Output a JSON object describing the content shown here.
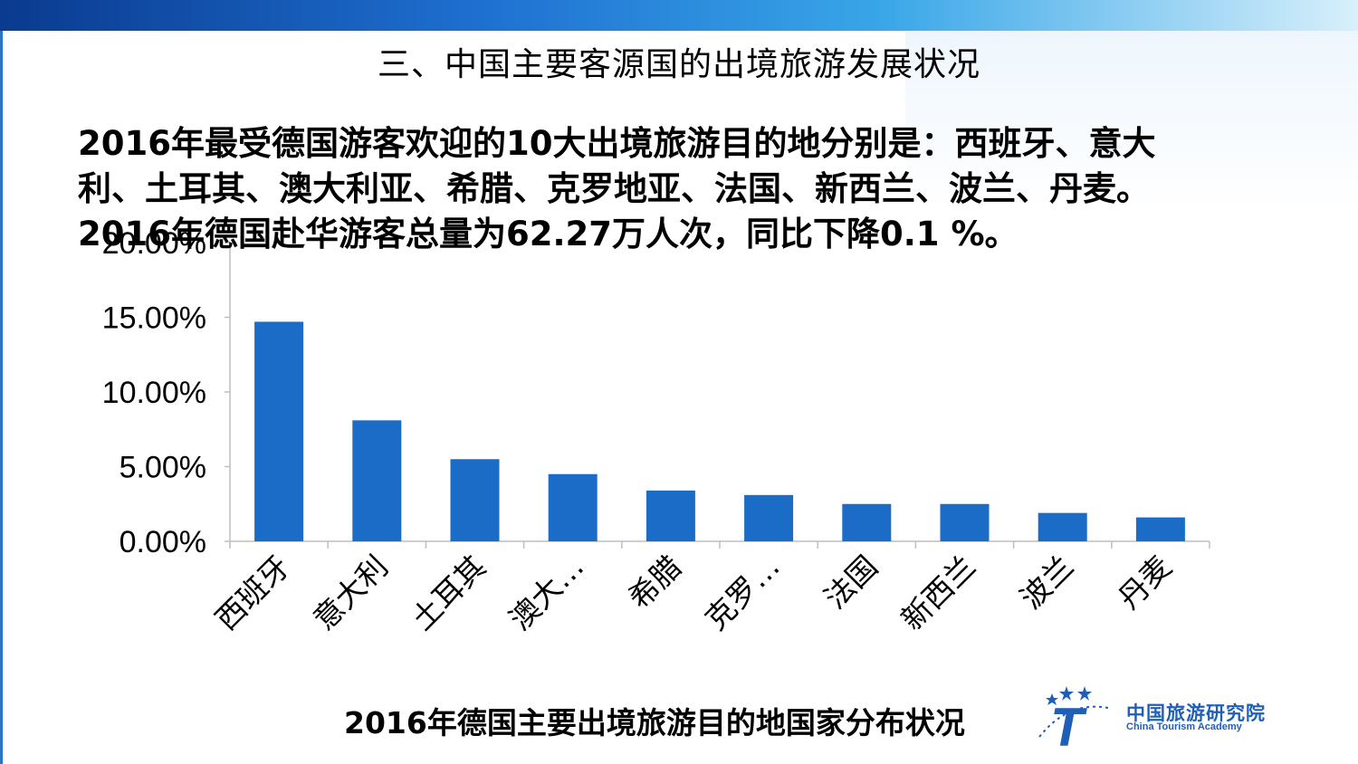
{
  "slide": {
    "title": "三、中国主要客源国的出境旅游发展状况",
    "intro_line1": "2016年最受德国游客欢迎的10大出境旅游目的地分别是：西班牙、意大",
    "intro_line2": "利、土耳其、澳大利亚、希腊、克罗地亚、法国、新西兰、波兰、丹麦。",
    "intro_line3": "2016年德国赴华游客总量为62.27万人次，同比下降0.1 %。",
    "caption": "2016年德国主要出境旅游目的地国家分布状况"
  },
  "logo": {
    "name_cn": "中国旅游研究院",
    "name_en": "China Tourism Academy",
    "mark_letter": "T"
  },
  "colors": {
    "bar": "#1a6cc6",
    "brand_blue": "#1f5fb8"
  },
  "chart_data": {
    "type": "bar",
    "title": "",
    "xlabel": "",
    "ylabel": "",
    "categories": [
      "西班牙",
      "意大利",
      "土耳其",
      "澳大…",
      "希腊",
      "克罗…",
      "法国",
      "新西兰",
      "波兰",
      "丹麦"
    ],
    "values": [
      14.7,
      8.1,
      5.5,
      4.5,
      3.4,
      3.1,
      2.5,
      2.5,
      1.9,
      1.6
    ],
    "ylim": [
      0,
      20
    ],
    "yticks": [
      0,
      5,
      10,
      15,
      20
    ],
    "ytick_labels": [
      "0.00%",
      "5.00%",
      "10.00%",
      "15.00%",
      "20.00%"
    ],
    "grid": false,
    "legend": "none"
  }
}
